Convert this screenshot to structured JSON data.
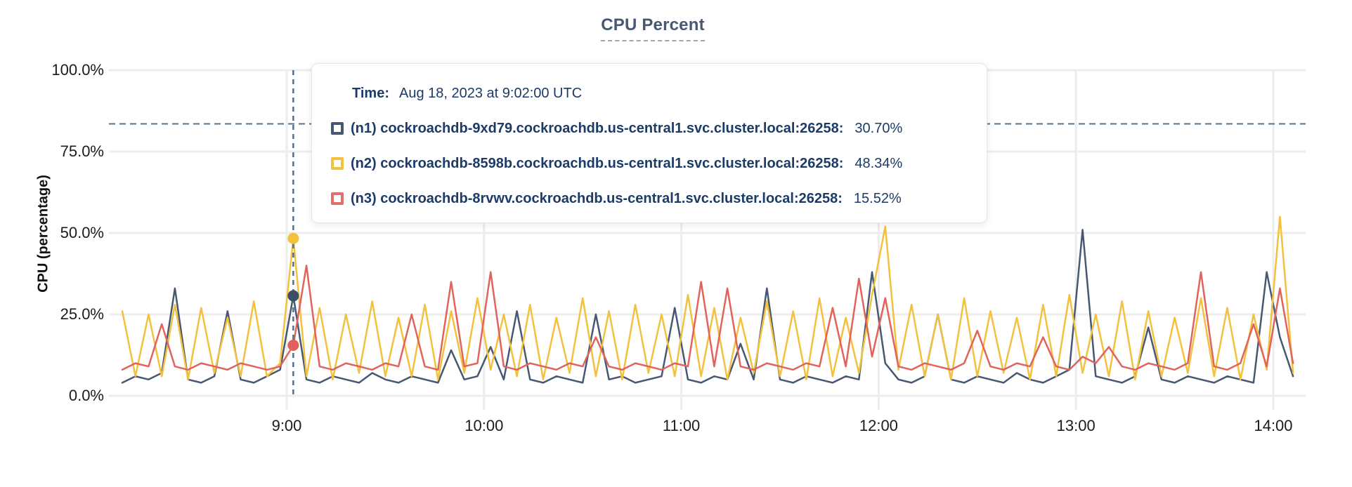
{
  "colors": {
    "n1": "#475872",
    "n2": "#F2C13D",
    "n3": "#E2635C",
    "n1_dot": "#3D4D68",
    "n2_dot": "#F2C13D",
    "n3_dot": "#E0605C",
    "threshold_line": "#5A7186",
    "hover_line": "#5A6E84",
    "grid": "#ededed",
    "title_text": "#475872",
    "title_underline": "#9aa7b5",
    "tooltip_text": "#1c3b67",
    "axis_text": "#1b1b1b"
  },
  "chart": {
    "title": "CPU Percent",
    "ylabel": "CPU (percentage)"
  },
  "tooltip": {
    "time_label": "Time:",
    "time_value": "Aug 18, 2023 at 9:02:00 UTC",
    "rows": [
      {
        "label": "(n1) cockroachdb-9xd79.cockroachdb.us-central1.svc.cluster.local:26258:",
        "value": "30.70%",
        "color": "#475872"
      },
      {
        "label": "(n2) cockroachdb-8598b.cockroachdb.us-central1.svc.cluster.local:26258:",
        "value": "48.34%",
        "color": "#F2C13D"
      },
      {
        "label": "(n3) cockroachdb-8rvwv.cockroachdb.us-central1.svc.cluster.local:26258:",
        "value": "15.52%",
        "color": "#E0706A"
      }
    ]
  },
  "chart_data": {
    "type": "line",
    "title": "CPU Percent",
    "xlabel": "",
    "ylabel": "CPU (percentage)",
    "ylim": [
      0,
      100
    ],
    "grid": true,
    "y_ticks": [
      "0.0%",
      "25.0%",
      "50.0%",
      "75.0%",
      "100.0%"
    ],
    "y_tick_values": [
      0,
      25,
      50,
      75,
      100
    ],
    "x_ticks": [
      "9:00",
      "10:00",
      "11:00",
      "12:00",
      "13:00",
      "14:00"
    ],
    "x_tick_minutes": [
      540,
      600,
      660,
      720,
      780,
      840
    ],
    "x_start_minutes": 490,
    "x_step_minutes": 4,
    "threshold_value": 83.5,
    "hover": {
      "index": 13,
      "time_label": "Aug 18, 2023 at 9:02:00 UTC",
      "values_pct": [
        30.7,
        48.34,
        15.52
      ]
    },
    "series": [
      {
        "name": "(n1) cockroachdb-9xd79.cockroachdb.us-central1.svc.cluster.local:26258",
        "color": "#475872",
        "values": [
          4,
          6,
          5,
          7,
          33,
          5,
          4,
          6,
          26,
          5,
          4,
          6,
          8,
          30.7,
          5,
          4,
          6,
          5,
          4,
          7,
          5,
          4,
          6,
          5,
          4,
          14,
          5,
          6,
          15,
          5,
          26,
          5,
          4,
          6,
          5,
          4,
          25,
          5,
          6,
          4,
          5,
          6,
          27,
          5,
          4,
          6,
          5,
          16,
          5,
          33,
          5,
          4,
          6,
          5,
          4,
          6,
          5,
          38,
          10,
          5,
          4,
          6,
          25,
          5,
          4,
          6,
          5,
          4,
          7,
          5,
          4,
          6,
          8,
          51,
          6,
          5,
          4,
          6,
          21,
          5,
          4,
          6,
          5,
          4,
          6,
          5,
          4,
          38,
          18,
          6
        ]
      },
      {
        "name": "(n2) cockroachdb-8598b.cockroachdb.us-central1.svc.cluster.local:26258",
        "color": "#F2C13D",
        "values": [
          26,
          6,
          25,
          6,
          28,
          5,
          27,
          7,
          24,
          6,
          29,
          6,
          10,
          48.34,
          6,
          27,
          5,
          25,
          7,
          29,
          6,
          24,
          6,
          28,
          5,
          26,
          7,
          30,
          8,
          25,
          6,
          28,
          5,
          24,
          7,
          30,
          6,
          26,
          5,
          28,
          7,
          25,
          6,
          31,
          6,
          27,
          5,
          24,
          7,
          29,
          6,
          26,
          5,
          30,
          6,
          24,
          7,
          31,
          52,
          8,
          28,
          6,
          25,
          5,
          30,
          6,
          26,
          7,
          24,
          5,
          28,
          6,
          31,
          7,
          25,
          6,
          29,
          5,
          26,
          6,
          24,
          7,
          30,
          6,
          27,
          5,
          25,
          8,
          55,
          7
        ]
      },
      {
        "name": "(n3) cockroachdb-8rvwv.cockroachdb.us-central1.svc.cluster.local:26258",
        "color": "#E2635C",
        "values": [
          8,
          10,
          9,
          22,
          9,
          8,
          10,
          9,
          8,
          10,
          9,
          8,
          9,
          15.52,
          40,
          9,
          8,
          10,
          9,
          8,
          10,
          9,
          25,
          9,
          8,
          35,
          9,
          10,
          38,
          9,
          8,
          10,
          9,
          8,
          10,
          9,
          18,
          9,
          8,
          10,
          9,
          8,
          10,
          9,
          35,
          9,
          33,
          9,
          8,
          10,
          9,
          8,
          10,
          9,
          27,
          9,
          36,
          12,
          30,
          9,
          8,
          10,
          9,
          8,
          10,
          20,
          9,
          8,
          10,
          9,
          18,
          9,
          8,
          12,
          10,
          15,
          9,
          8,
          10,
          9,
          8,
          10,
          38,
          9,
          8,
          10,
          22,
          9,
          33,
          10
        ]
      }
    ]
  }
}
